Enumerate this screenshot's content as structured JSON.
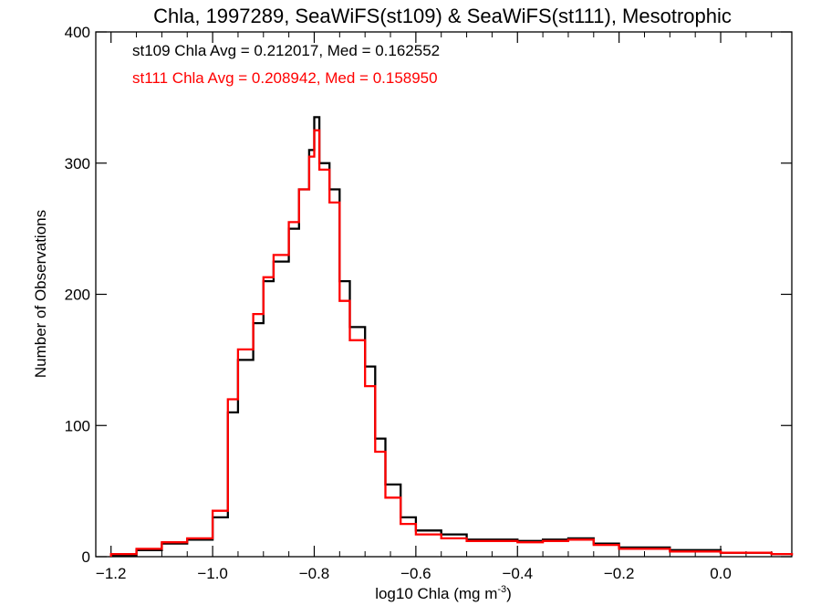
{
  "chart_data": {
    "type": "step-histogram",
    "title": "Chla, 1997289, SeaWiFS(st109) & SeaWiFS(st111), Mesotrophic",
    "xlabel": "log10 Chla (mg m",
    "xlabel_sup": "-3",
    "xlabel_end": ")",
    "ylabel": "Number of Observations",
    "xlim": [
      -1.23,
      0.14
    ],
    "ylim": [
      0,
      400
    ],
    "xticks": [
      -1.2,
      -1.0,
      -0.8,
      -0.6,
      -0.4,
      -0.2,
      0.0
    ],
    "xtick_labels": [
      "−1.2",
      "−1.0",
      "−0.8",
      "−0.6",
      "−0.4",
      "−0.2",
      "0.0"
    ],
    "yticks": [
      0,
      100,
      200,
      300,
      400
    ],
    "ytick_labels": [
      "0",
      "100",
      "200",
      "300",
      "400"
    ],
    "annotations": [
      {
        "text": "st109 Chla Avg = 0.212017, Med = 0.162552",
        "color": "#000000"
      },
      {
        "text": "st111 Chla Avg = 0.208942, Med = 0.158950",
        "color": "#ff0000"
      }
    ],
    "grid": false,
    "series": [
      {
        "name": "st109",
        "color": "#000000",
        "x": [
          -1.2,
          -1.15,
          -1.1,
          -1.05,
          -1.0,
          -0.97,
          -0.95,
          -0.92,
          -0.9,
          -0.88,
          -0.85,
          -0.83,
          -0.81,
          -0.8,
          -0.79,
          -0.77,
          -0.75,
          -0.73,
          -0.7,
          -0.68,
          -0.66,
          -0.63,
          -0.6,
          -0.55,
          -0.5,
          -0.4,
          -0.35,
          -0.3,
          -0.25,
          -0.2,
          -0.1,
          0.0,
          0.1,
          0.14
        ],
        "y": [
          1,
          5,
          10,
          13,
          30,
          110,
          150,
          178,
          210,
          225,
          250,
          280,
          310,
          335,
          300,
          280,
          210,
          175,
          145,
          90,
          55,
          30,
          20,
          17,
          13,
          12,
          13,
          14,
          10,
          7,
          5,
          3,
          2,
          1
        ]
      },
      {
        "name": "st111",
        "color": "#ff0000",
        "x": [
          -1.2,
          -1.15,
          -1.1,
          -1.05,
          -1.0,
          -0.97,
          -0.95,
          -0.92,
          -0.9,
          -0.88,
          -0.85,
          -0.83,
          -0.81,
          -0.8,
          -0.79,
          -0.77,
          -0.75,
          -0.73,
          -0.7,
          -0.68,
          -0.66,
          -0.63,
          -0.6,
          -0.55,
          -0.5,
          -0.4,
          -0.35,
          -0.3,
          -0.25,
          -0.2,
          -0.1,
          0.0,
          0.1,
          0.14
        ],
        "y": [
          2,
          6,
          11,
          14,
          35,
          120,
          158,
          185,
          213,
          230,
          255,
          280,
          305,
          325,
          295,
          270,
          195,
          165,
          130,
          80,
          45,
          25,
          17,
          14,
          12,
          11,
          12,
          13,
          9,
          6,
          4,
          3,
          2,
          1
        ]
      }
    ]
  }
}
